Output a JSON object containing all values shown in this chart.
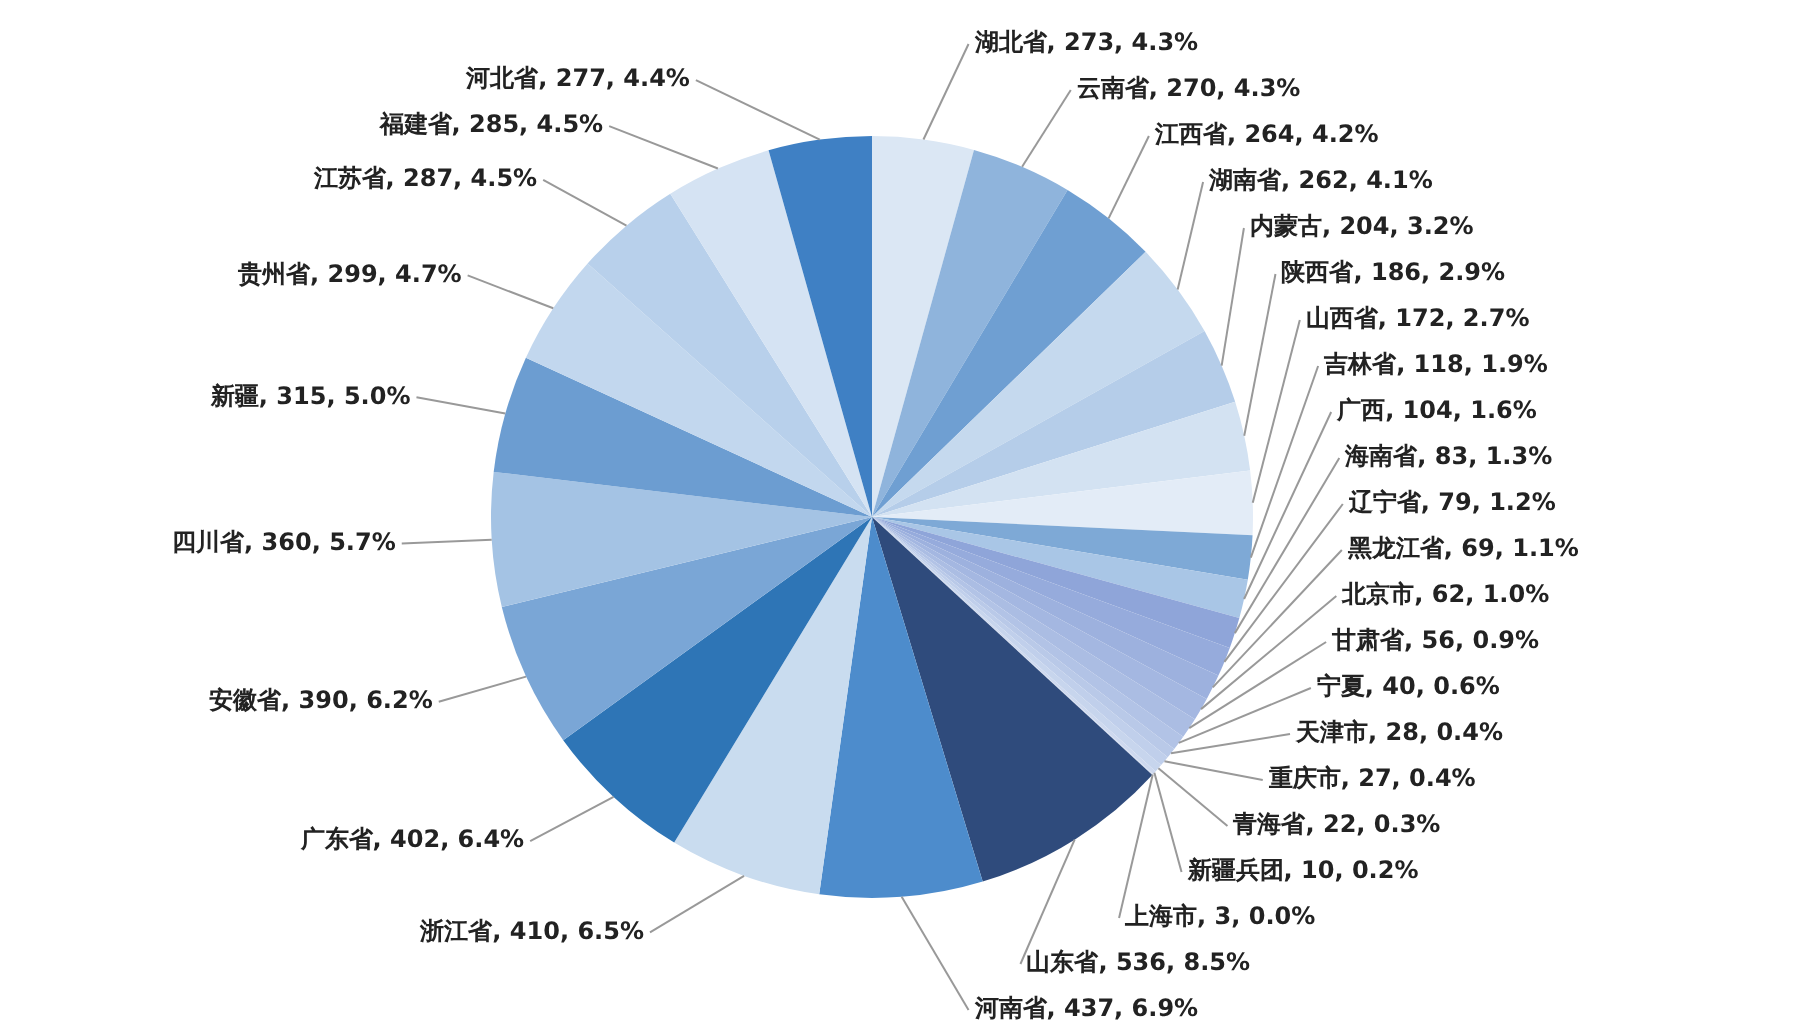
{
  "chart_data": {
    "type": "pie",
    "legend": false,
    "categories": [
      "湖北省",
      "云南省",
      "江西省",
      "湖南省",
      "内蒙古",
      "陕西省",
      "山西省",
      "吉林省",
      "广西",
      "海南省",
      "辽宁省",
      "黑龙江省",
      "北京市",
      "甘肃省",
      "宁夏",
      "天津市",
      "重庆市",
      "青海省",
      "新疆兵团",
      "上海市",
      "山东省",
      "河南省",
      "浙江省",
      "广东省",
      "安徽省",
      "四川省",
      "新疆",
      "贵州省",
      "江苏省",
      "福建省",
      "河北省"
    ],
    "values": [
      273,
      270,
      264,
      262,
      204,
      186,
      172,
      118,
      104,
      83,
      79,
      69,
      62,
      56,
      40,
      28,
      27,
      22,
      10,
      3,
      536,
      437,
      410,
      402,
      390,
      360,
      315,
      299,
      287,
      285,
      277
    ],
    "value_labels": [
      "273, 4.3%",
      "270, 4.3%",
      "264, 4.2%",
      "262, 4.1%",
      "204, 3.2%",
      "186, 2.9%",
      "172, 2.7%",
      "118, 1.9%",
      "104, 1.6%",
      "83, 1.3%",
      "79, 1.2%",
      "69, 1.1%",
      "62, 1.0%",
      "56, 0.9%",
      "40, 0.6%",
      "28, 0.4%",
      "27, 0.4%",
      "22, 0.3%",
      "10, 0.2%",
      "3, 0.0%",
      "536, 8.5%",
      "437, 6.9%",
      "410, 6.5%",
      "402, 6.4%",
      "390, 6.2%",
      "360, 5.7%",
      "315, 5.0%",
      "299, 4.7%",
      "287, 4.5%",
      "285, 4.5%",
      "277, 4.4%"
    ],
    "colors": [
      "#dbe7f4",
      "#8fb4dc",
      "#6f9fd2",
      "#c5d9ee",
      "#b5cde9",
      "#d3e2f2",
      "#e3ecf7",
      "#7ea9d6",
      "#a9c6e6",
      "#8fa5d9",
      "#96abdc",
      "#9db1de",
      "#a4b7e1",
      "#abbde3",
      "#b2c3e6",
      "#b9c9e8",
      "#c0cfeb",
      "#c7d5ed",
      "#ced9ef",
      "#d4def1",
      "#2f4b7c",
      "#4d8ccc",
      "#c9dcef",
      "#2e75b6",
      "#7aa6d6",
      "#a4c3e4",
      "#6c9dd1",
      "#c2d7ee",
      "#b8d0eb",
      "#d5e3f3",
      "#3f80c4"
    ]
  }
}
